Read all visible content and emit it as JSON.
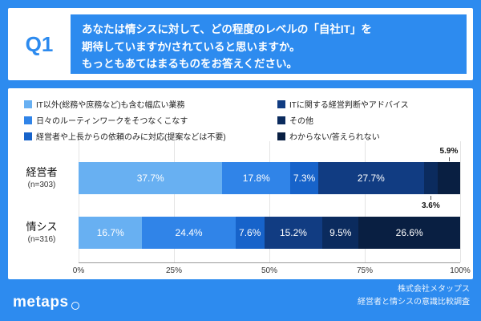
{
  "colors": {
    "page_bg": "#2d8bef",
    "accent_blue": "#2d8bef",
    "card_bg": "#ffffff"
  },
  "question": {
    "label": "Q1",
    "lines": [
      "あなたは情シスに対して、どの程度のレベルの「自社IT」を",
      "期待していますか/されていると思いますか。",
      "もっともあてはまるものをお答えください。"
    ]
  },
  "chart_data": {
    "type": "bar",
    "stacked": true,
    "orientation": "horizontal",
    "grid": true,
    "legend_position": "top",
    "categories": [
      "経営者",
      "情シス"
    ],
    "category_ns": [
      "(n=303)",
      "(n=316)"
    ],
    "series": [
      {
        "name": "IT以外(総務や庶務など)も含む幅広い業務",
        "color": "#68b0f2",
        "values": [
          37.7,
          16.7
        ]
      },
      {
        "name": "日々のルーティンワークをそつなくこなす",
        "color": "#3084e8",
        "values": [
          17.8,
          24.4
        ]
      },
      {
        "name": "経営者や上長からの依頼のみに対応(提案などは不要)",
        "color": "#1763ca",
        "values": [
          7.3,
          7.6
        ]
      },
      {
        "name": "ITに関する経営判断やアドバイス",
        "color": "#113c82",
        "values": [
          27.7,
          15.2
        ]
      },
      {
        "name": "その他",
        "color": "#0b2b5e",
        "values": [
          3.6,
          9.5
        ]
      },
      {
        "name": "わからない/答えられない",
        "color": "#091f42",
        "values": [
          5.9,
          26.6
        ]
      }
    ],
    "x_ticks": [
      "0%",
      "25%",
      "50%",
      "75%",
      "100%"
    ],
    "xlim": [
      0,
      100
    ],
    "value_suffix": "%",
    "outside_labels": [
      {
        "bar": 0,
        "series": 4,
        "position": "below"
      },
      {
        "bar": 0,
        "series": 5,
        "position": "above"
      }
    ],
    "legend_columns": [
      [
        0,
        1,
        2
      ],
      [
        3,
        4,
        5
      ]
    ]
  },
  "footer": {
    "logo_text": "metaps",
    "credit_lines": [
      "株式会社メタップス",
      "経営者と情シスの意識比較調査"
    ]
  }
}
